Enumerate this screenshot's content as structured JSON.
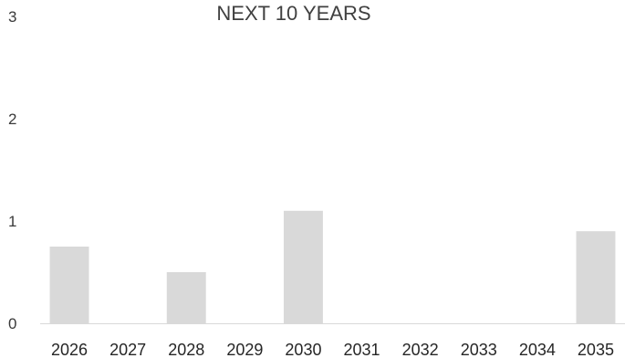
{
  "chart_data": {
    "type": "bar",
    "title": "NEXT 10 YEARS",
    "categories": [
      "2026",
      "2027",
      "2028",
      "2029",
      "2030",
      "2031",
      "2032",
      "2033",
      "2034",
      "2035"
    ],
    "values": [
      0.75,
      0,
      0.5,
      0,
      1.1,
      0,
      0,
      0,
      0,
      0.9
    ],
    "ylim": [
      0,
      3
    ],
    "yticks": [
      "0",
      "1",
      "2",
      "3"
    ],
    "xlabel": "",
    "ylabel": "",
    "grid": false,
    "legend": "none",
    "bar_color": "#d9d9d9",
    "axis_color": "#d9d9d9"
  }
}
